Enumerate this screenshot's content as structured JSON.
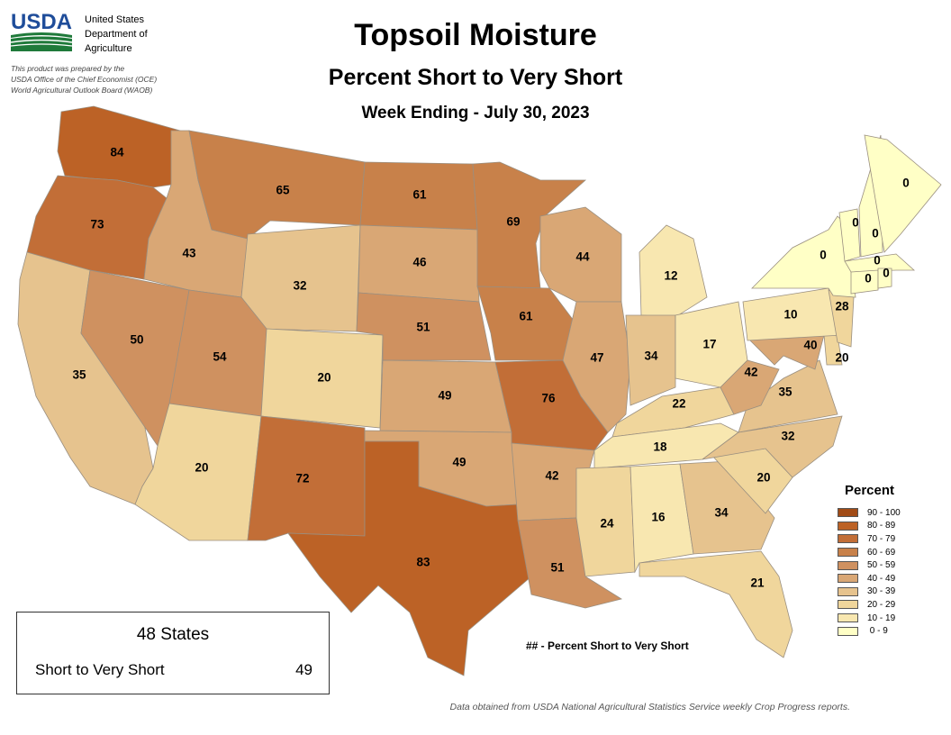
{
  "header": {
    "logo_text": "USDA",
    "agency_lines": [
      "United States",
      "Department of",
      "Agriculture"
    ],
    "prepared_lines": [
      "This product was prepared by the",
      "USDA Office of the Chief Economist (OCE)",
      "World Agricultural Outlook Board (WAOB)"
    ]
  },
  "title": "Topsoil Moisture",
  "subtitle": "Percent Short to Very Short",
  "week": "Week Ending - July 30, 2023",
  "legend": {
    "title": "Percent",
    "items": [
      {
        "label": "90 - 100",
        "color": "#a14b16"
      },
      {
        "label": "80 - 89",
        "color": "#bc6226"
      },
      {
        "label": "70 - 79",
        "color": "#c26e37"
      },
      {
        "label": "60 - 69",
        "color": "#c8814a"
      },
      {
        "label": "50 - 59",
        "color": "#cf9160"
      },
      {
        "label": "40 - 49",
        "color": "#d9a775"
      },
      {
        "label": "30 - 39",
        "color": "#e6c38e"
      },
      {
        "label": "20 - 29",
        "color": "#f0d69c"
      },
      {
        "label": "10 - 19",
        "color": "#f8e7b0"
      },
      {
        "label": " 0 - 9",
        "color": "#ffffc6"
      }
    ]
  },
  "summary": {
    "heading": "48 States",
    "label": "Short to Very Short",
    "value": "49"
  },
  "note": "## - Percent Short to Very Short",
  "source": "Data obtained from USDA National Agricultural Statistics Service weekly Crop Progress reports.",
  "states": {
    "WA": 84,
    "OR": 73,
    "CA": 35,
    "NV": 50,
    "ID": 43,
    "MT": 65,
    "WY": 32,
    "UT": 54,
    "AZ": 20,
    "CO": 20,
    "NM": 72,
    "ND": 61,
    "SD": 46,
    "NE": 51,
    "KS": 49,
    "OK": 49,
    "TX": 83,
    "MN": 69,
    "IA": 61,
    "MO": 76,
    "AR": 42,
    "LA": 51,
    "WI": 44,
    "IL": 47,
    "MI": 12,
    "IN": 34,
    "OH": 17,
    "KY": 22,
    "TN": 18,
    "MS": 24,
    "AL": 16,
    "GA": 34,
    "FL": 21,
    "SC": 20,
    "NC": 32,
    "VA": 35,
    "WV": 42,
    "MD": 40,
    "DE": 20,
    "PA": 10,
    "NJ": 28,
    "NY": 0,
    "VT": 0,
    "NH": 0,
    "ME": 0,
    "MA": 0,
    "CT": 0,
    "RI": 0
  }
}
